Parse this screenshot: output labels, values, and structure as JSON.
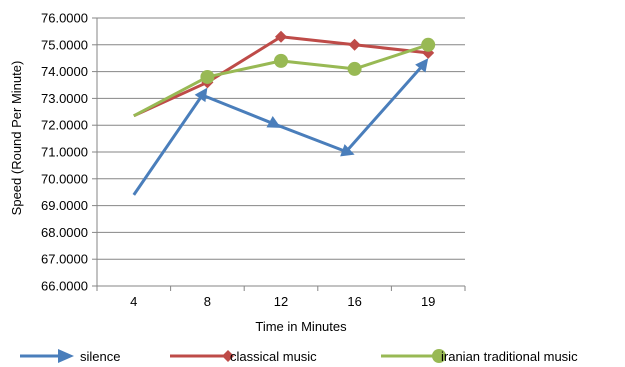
{
  "chart_data": {
    "type": "line",
    "categories": [
      "4",
      "8",
      "12",
      "16",
      "19"
    ],
    "xlabel": "Time in Minutes",
    "ylabel": "Speed (Round Per Minute)",
    "ylim": [
      66,
      76
    ],
    "yticks": [
      "66.0000",
      "67.0000",
      "68.0000",
      "69.0000",
      "70.0000",
      "71.0000",
      "72.0000",
      "73.0000",
      "74.0000",
      "75.0000",
      "76.0000"
    ],
    "grid": "horizontal",
    "legend": "bottom",
    "series": [
      {
        "name": "silence",
        "values": [
          69.4,
          73.4,
          71.9,
          70.9,
          74.5
        ],
        "color": "#4a7ebb",
        "marker": "arrow"
      },
      {
        "name": "classical music",
        "values": [
          72.35,
          73.6,
          75.3,
          75.0,
          74.7
        ],
        "color": "#be4b48",
        "marker": "diamond"
      },
      {
        "name": "iranian traditional music",
        "values": [
          72.35,
          73.8,
          74.4,
          74.1,
          75.0
        ],
        "color": "#98b954",
        "marker": "circle"
      }
    ]
  }
}
